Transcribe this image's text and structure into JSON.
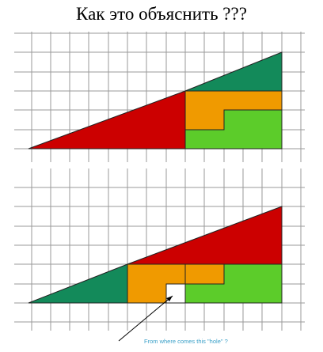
{
  "title": "Как это объяснить ???",
  "caption": "From where comes this \"hole\" ?",
  "colors": {
    "red": "#cc0000",
    "dark_green": "#138a5a",
    "orange": "#f09a00",
    "light_green": "#5ccc2a",
    "grid": "#9a9a9a",
    "caption": "#3aa0c8"
  }
}
